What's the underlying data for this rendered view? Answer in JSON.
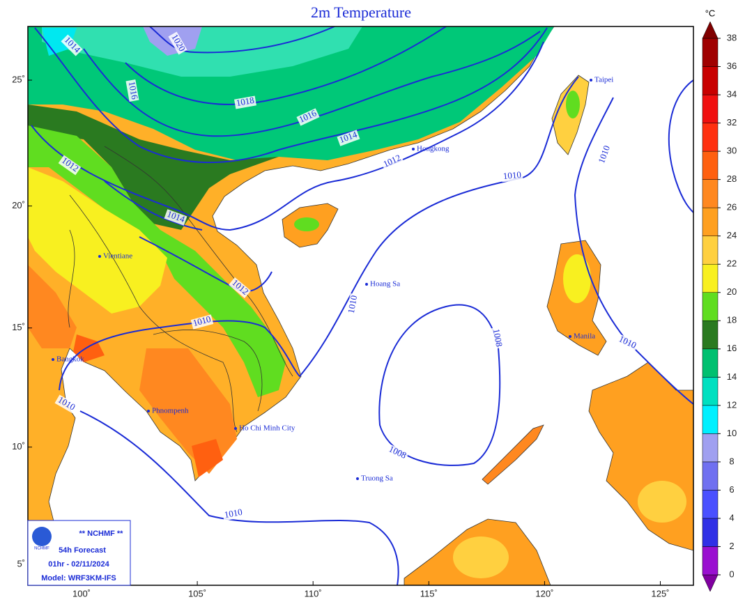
{
  "title": "2m Temperature",
  "colorbar": {
    "unit": "°C",
    "ticks": [
      0,
      2,
      4,
      6,
      8,
      10,
      12,
      14,
      16,
      18,
      20,
      22,
      24,
      26,
      28,
      30,
      32,
      34,
      36,
      38
    ],
    "colors": [
      "#8000a0",
      "#9a10d0",
      "#3030e6",
      "#4a50ff",
      "#7070f0",
      "#a0a0f0",
      "#00f0ff",
      "#00e0c0",
      "#00c070",
      "#2a7a20",
      "#60dd20",
      "#f8f020",
      "#ffd040",
      "#ffa020",
      "#ff8820",
      "#ff6010",
      "#ff3010",
      "#f01010",
      "#c80000",
      "#a00000",
      "#800000"
    ]
  },
  "lon_ticks": [
    {
      "value": 100,
      "label": "100˚"
    },
    {
      "value": 105,
      "label": "105˚"
    },
    {
      "value": 110,
      "label": "110˚"
    },
    {
      "value": 115,
      "label": "115˚"
    },
    {
      "value": 120,
      "label": "120˚"
    },
    {
      "value": 125,
      "label": "125˚"
    }
  ],
  "lat_ticks": [
    {
      "value": 25,
      "label": "25˚"
    },
    {
      "value": 20,
      "label": "20˚"
    },
    {
      "value": 15,
      "label": "15˚"
    },
    {
      "value": 10,
      "label": "10˚"
    },
    {
      "value": 5,
      "label": "5˚"
    }
  ],
  "places": [
    "Taipei",
    "Hongkong",
    "Vientiane",
    "Bangkok",
    "Phnompenh",
    "Ho Chi Minh City",
    "Manila",
    "Hoang Sa",
    "Truong Sa"
  ],
  "isobar_labels": [
    1020,
    1014,
    1016,
    1018,
    1016,
    1014,
    1012,
    1012,
    1010,
    1010,
    1014,
    1012,
    1010,
    1010,
    1008,
    1008,
    1010,
    1010,
    1010
  ],
  "info": {
    "logo": "NCHMF",
    "org": "** NCHMF **",
    "forecast": "54h Forecast",
    "time": "01hr - 02/11/2024",
    "model": "Model: WRF3KM-IFS"
  }
}
